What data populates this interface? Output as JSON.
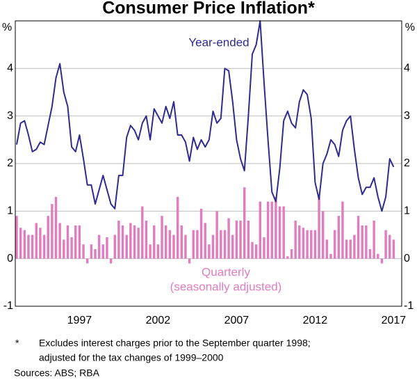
{
  "chart_data": {
    "type": "combo",
    "title": "Consumer Price Inflation*",
    "y_unit": "%",
    "categories": [
      null,
      null,
      null,
      null,
      null,
      null,
      null,
      null,
      null,
      null,
      null,
      null,
      null,
      null,
      null,
      null,
      "1997",
      null,
      null,
      null,
      null,
      null,
      null,
      null,
      null,
      null,
      null,
      null,
      null,
      null,
      null,
      null,
      null,
      null,
      null,
      null,
      "2002",
      null,
      null,
      null,
      null,
      null,
      null,
      null,
      null,
      null,
      null,
      null,
      null,
      null,
      null,
      null,
      null,
      null,
      null,
      null,
      "2007",
      null,
      null,
      null,
      null,
      null,
      null,
      null,
      null,
      null,
      null,
      null,
      null,
      null,
      null,
      null,
      null,
      null,
      null,
      null,
      "2012",
      null,
      null,
      null,
      null,
      null,
      null,
      null,
      null,
      null,
      null,
      null,
      null,
      null,
      null,
      null,
      null,
      null,
      null,
      null,
      "2017"
    ],
    "series": [
      {
        "name": "Year-ended",
        "type": "line",
        "color": "#2e2a8f",
        "values": [
          2.4,
          2.85,
          2.9,
          2.6,
          2.25,
          2.3,
          2.45,
          2.4,
          2.8,
          3.2,
          3.8,
          4.1,
          3.5,
          3.2,
          2.35,
          2.25,
          2.6,
          2.1,
          1.55,
          1.55,
          1.15,
          1.45,
          1.75,
          1.45,
          1.15,
          1.05,
          1.75,
          1.75,
          2.55,
          2.8,
          2.7,
          2.5,
          2.85,
          3.0,
          2.5,
          3.15,
          3.0,
          2.85,
          3.2,
          2.95,
          3.3,
          2.6,
          2.6,
          2.45,
          2.05,
          2.55,
          2.3,
          2.5,
          2.35,
          2.5,
          3.1,
          2.85,
          2.95,
          4.0,
          3.95,
          3.3,
          2.5,
          2.1,
          1.85,
          3.0,
          4.3,
          4.5,
          5.0,
          3.7,
          2.5,
          1.4,
          1.2,
          1.9,
          2.9,
          3.1,
          2.85,
          2.75,
          3.3,
          3.55,
          3.45,
          2.95,
          1.6,
          1.25,
          2.0,
          2.2,
          2.5,
          2.4,
          2.15,
          2.7,
          2.9,
          3.0,
          2.3,
          1.7,
          1.35,
          1.5,
          1.5,
          1.7,
          1.3,
          1.0,
          1.3,
          2.1,
          1.93
        ]
      },
      {
        "name": "Quarterly",
        "note": "(seasonally adjusted)",
        "type": "bar",
        "color": "#e07cc0",
        "values": [
          0.9,
          0.65,
          0.6,
          0.5,
          0.5,
          0.75,
          0.65,
          0.5,
          0.9,
          1.15,
          1.3,
          0.75,
          0.4,
          0.7,
          0.45,
          0.7,
          0.7,
          0.3,
          -0.1,
          0.3,
          0.2,
          0.5,
          0.3,
          0.45,
          -0.1,
          0.5,
          0.8,
          0.7,
          0.5,
          0.75,
          0.7,
          0.65,
          1.1,
          0.8,
          0.3,
          0.7,
          0.3,
          0.9,
          0.7,
          0.6,
          0.5,
          1.3,
          0.7,
          0.5,
          -0.1,
          0.6,
          0.6,
          1.05,
          0.75,
          0.3,
          0.5,
          1.0,
          0.6,
          0.6,
          0.85,
          0.5,
          0.8,
          0.8,
          1.5,
          0.8,
          0.35,
          0.3,
          1.2,
          0.45,
          1.2,
          1.2,
          1.3,
          1.1,
          1.1,
          0.05,
          0.2,
          0.8,
          0.7,
          0.65,
          0.6,
          0.6,
          0.6,
          1.3,
          1.0,
          0.4,
          0.1,
          0.6,
          0.9,
          1.2,
          0.4,
          0.4,
          0.5,
          0.9,
          0.7,
          0.7,
          0.2,
          0.8,
          0.1,
          -0.1,
          0.6,
          0.5,
          0.4
        ]
      }
    ],
    "ylim": [
      -1,
      5
    ],
    "yticks": [
      -1,
      0,
      1,
      2,
      3,
      4
    ],
    "grid": true,
    "footnote_marker": "*",
    "footnote": [
      "Excludes interest charges prior to the September quarter 1998;",
      "adjusted for the tax changes of 1999–2000"
    ],
    "sources": "Sources: ABS; RBA"
  }
}
